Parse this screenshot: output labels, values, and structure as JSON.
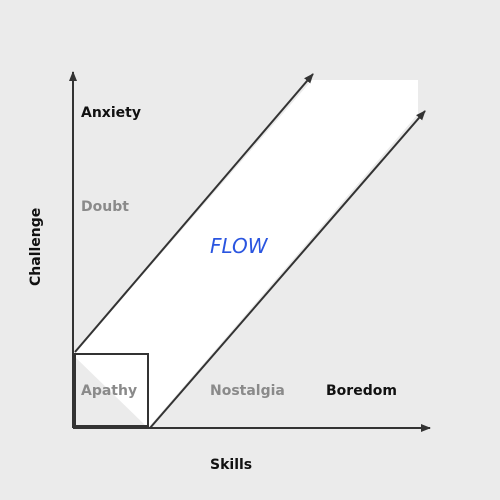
{
  "axes": {
    "x_label": "Skills",
    "y_label": "Challenge"
  },
  "regions": {
    "anxiety": "Anxiety",
    "doubt": "Doubt",
    "flow": "FLOW",
    "apathy": "Apathy",
    "nostalgia": "Nostalgia",
    "boredom": "Boredom"
  },
  "colors": {
    "background": "#ebebeb",
    "flow_channel": "#ffffff",
    "axis": "#333333",
    "flow_text": "#2a55e0",
    "dark_text": "#111111",
    "muted_text": "#8a8a8a"
  }
}
